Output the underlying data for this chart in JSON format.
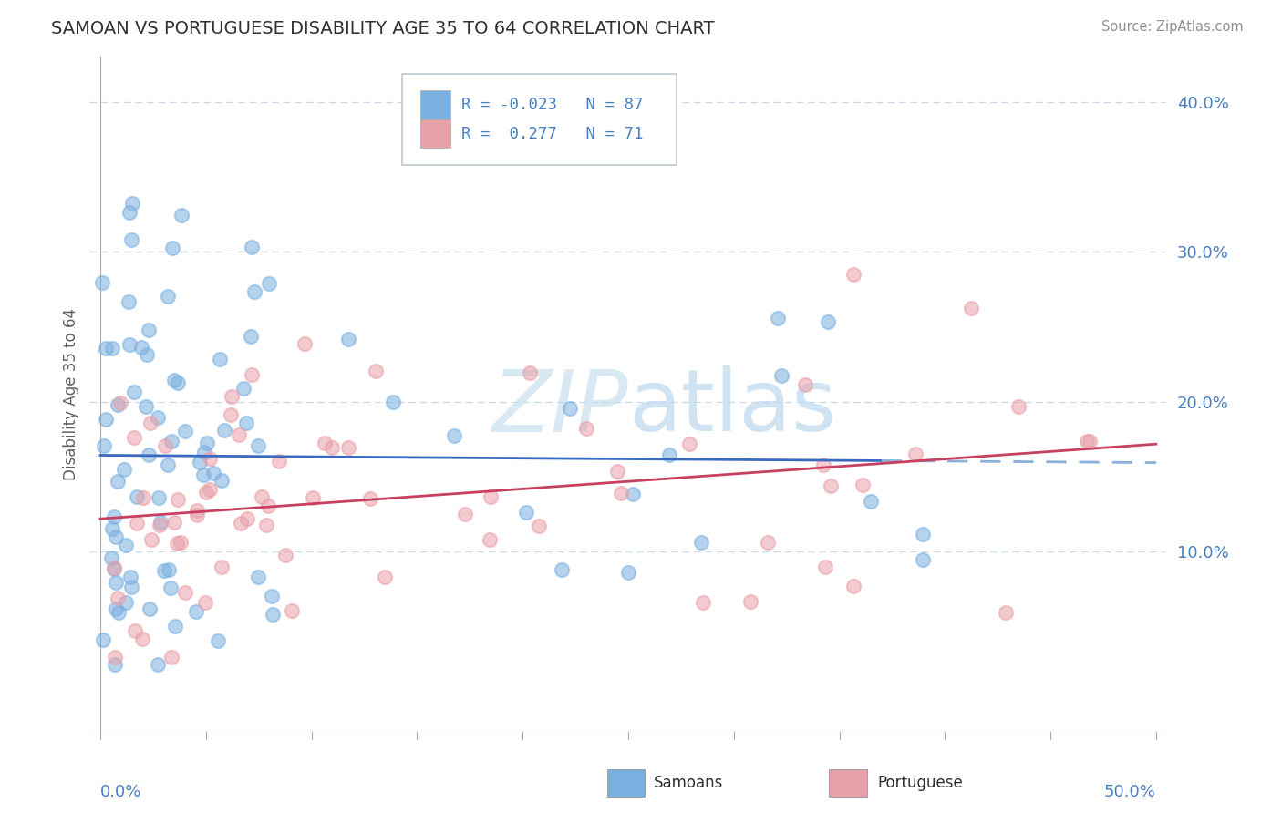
{
  "title": "SAMOAN VS PORTUGUESE DISABILITY AGE 35 TO 64 CORRELATION CHART",
  "source": "Source: ZipAtlas.com",
  "ylabel": "Disability Age 35 to 64",
  "xlim": [
    -0.005,
    0.505
  ],
  "ylim": [
    -0.02,
    0.43
  ],
  "y_ticks": [
    0.1,
    0.2,
    0.3,
    0.4
  ],
  "y_tick_labels": [
    "10.0%",
    "20.0%",
    "30.0%",
    "40.0%"
  ],
  "legend_r_samoan": "-0.023",
  "legend_n_samoan": "87",
  "legend_r_portuguese": "0.277",
  "legend_n_portuguese": "71",
  "samoan_color": "#7ab0e0",
  "portuguese_color": "#e8a0a8",
  "trend_samoan_solid_color": "#3a6abf",
  "trend_samoan_dash_color": "#8ab0d8",
  "trend_portuguese_color": "#c84060",
  "background_color": "#ffffff",
  "grid_color": "#c8d8e8",
  "watermark_color": "#d0e4f0",
  "title_color": "#303030",
  "source_color": "#909090",
  "axis_label_color": "#4a80c0",
  "ylabel_color": "#606060"
}
